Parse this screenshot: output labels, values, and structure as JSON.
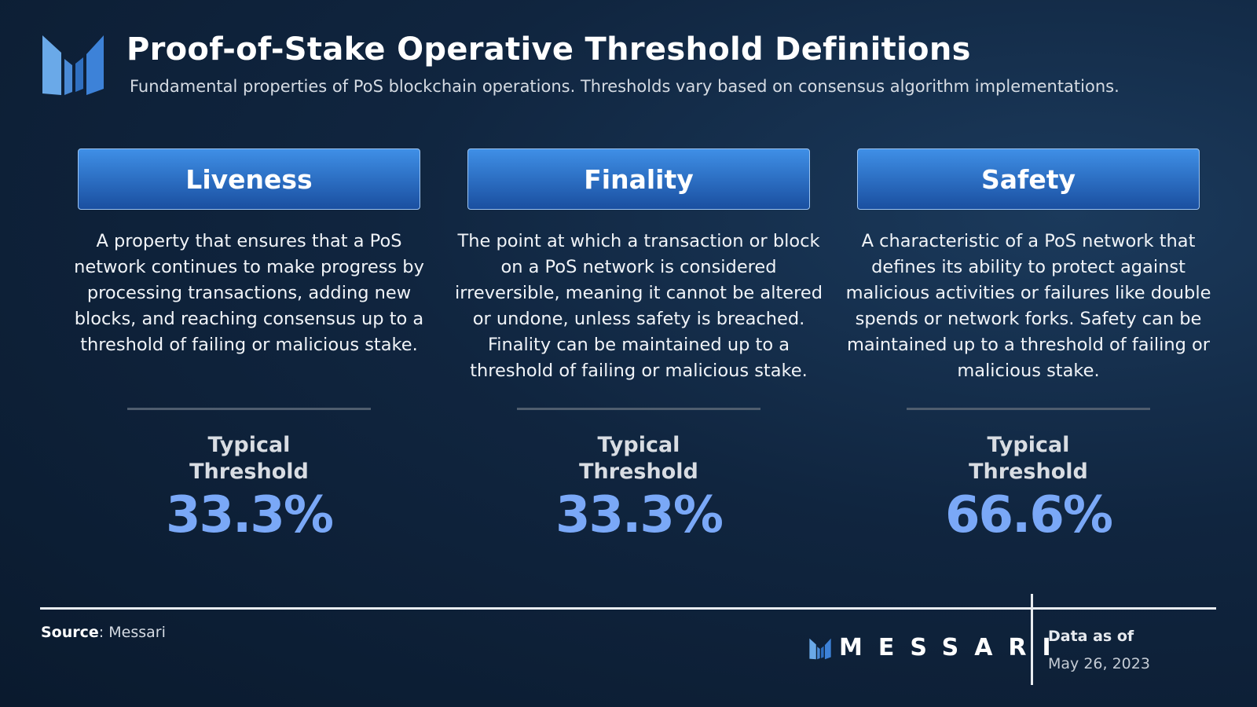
{
  "header": {
    "title": "Proof-of-Stake Operative Threshold Definitions",
    "subtitle": "Fundamental properties of PoS blockchain operations. Thresholds vary based on consensus algorithm implementations."
  },
  "cards": [
    {
      "title": "Liveness",
      "description": "A property that ensures that a PoS network continues to make progress by processing transactions, adding new blocks, and reaching consensus up to a threshold of failing or malicious stake.",
      "threshold_label": "Typical Threshold",
      "threshold_value": "33.3%"
    },
    {
      "title": "Finality",
      "description": "The point at which a transaction or block on a PoS network is considered irreversible, meaning it cannot be altered or undone, unless safety is breached. Finality can be maintained up to a threshold of failing or malicious stake.",
      "threshold_label": "Typical Threshold",
      "threshold_value": "33.3%"
    },
    {
      "title": "Safety",
      "description": "A characteristic of a PoS network that defines its ability to protect against malicious activities or failures like double spends or network forks. Safety can be maintained up to a threshold of failing or malicious stake.",
      "threshold_label": "Typical Threshold",
      "threshold_value": "66.6%"
    }
  ],
  "footer": {
    "source_label": "Source",
    "source_text": ": Messari",
    "brand": "MESSARI",
    "date_label": "Data as of",
    "date": "May 26, 2023"
  }
}
